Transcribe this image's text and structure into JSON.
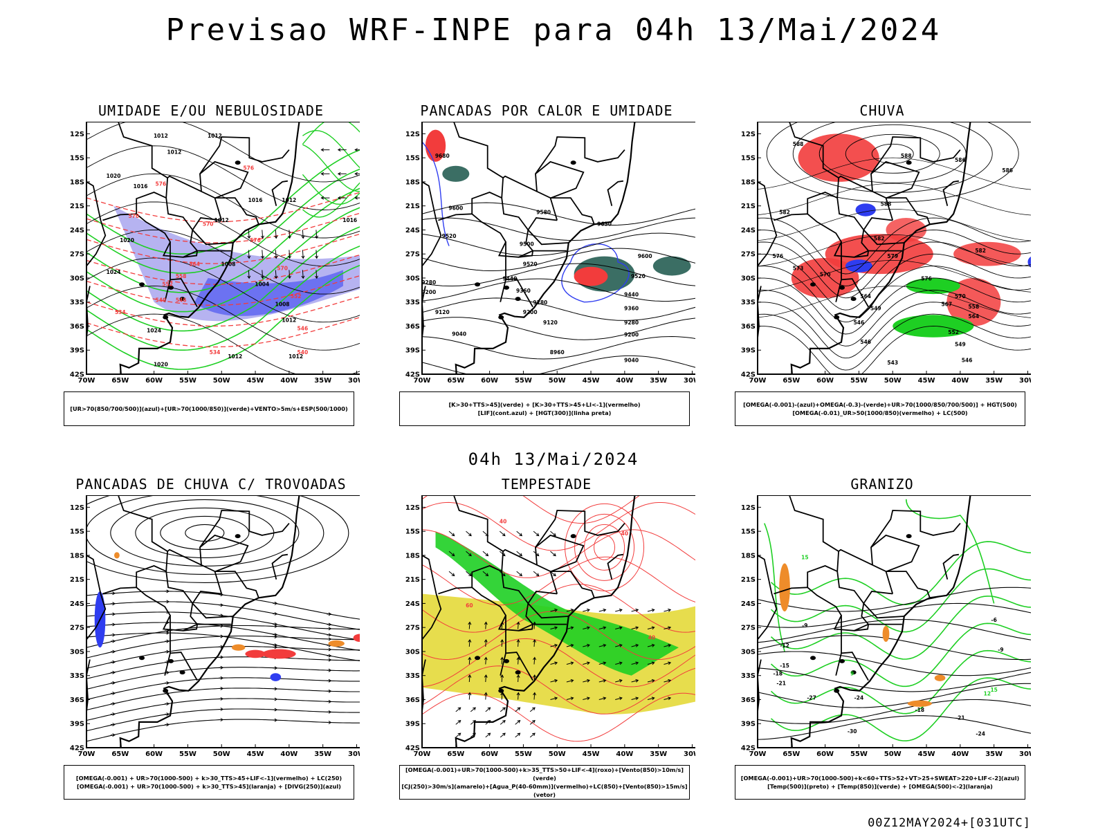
{
  "title": "Previsao WRF-INPE  para 04h 13/Mai/2024",
  "subtitle": "04h 13/Mai/2024",
  "footer": "00Z12MAY2024+[031UTC]",
  "colors": {
    "blue": "#2f3df0",
    "lavender": "#a9a6ee",
    "green": "#1ecf23",
    "red": "#f23c3c",
    "teal": "#3b6e64",
    "orange": "#ee8c2a",
    "yellow": "#e4d93a",
    "black": "#000000"
  },
  "axes": {
    "lat_ticks": [
      "12S",
      "15S",
      "18S",
      "21S",
      "24S",
      "27S",
      "30S",
      "33S",
      "36S",
      "39S",
      "42S"
    ],
    "lon_ticks": [
      "70W",
      "65W",
      "60W",
      "55W",
      "50W",
      "45W",
      "40W",
      "35W",
      "30W"
    ]
  },
  "chart_data": [
    {
      "type": "map",
      "title": "UMIDADE E/OU NEBULOSIDADE",
      "legend_lines": [
        "[UR>70(850/700/500)](azul)+[UR>70(1000/850)](verde)+VENTO>5m/s+ESP(500/1000)"
      ],
      "xlim": [
        -70,
        -28
      ],
      "ylim": [
        -42,
        -10.5
      ],
      "contour_labels": [
        {
          "text": "1012",
          "lon": -59,
          "lat": -12.5,
          "color": "black"
        },
        {
          "text": "1012",
          "lon": -51,
          "lat": -12.5,
          "color": "black"
        },
        {
          "text": "1012",
          "lon": -57,
          "lat": -14.5,
          "color": "black"
        },
        {
          "text": "1020",
          "lon": -66,
          "lat": -17.5,
          "color": "black"
        },
        {
          "text": "1016",
          "lon": -62,
          "lat": -18.8,
          "color": "black"
        },
        {
          "text": "1016",
          "lon": -45,
          "lat": -20.5,
          "color": "black"
        },
        {
          "text": "1012",
          "lon": -50,
          "lat": -23,
          "color": "black"
        },
        {
          "text": "1012",
          "lon": -40,
          "lat": -20.5,
          "color": "black"
        },
        {
          "text": "1016",
          "lon": -31,
          "lat": -23,
          "color": "black"
        },
        {
          "text": "1020",
          "lon": -64,
          "lat": -25.5,
          "color": "black"
        },
        {
          "text": "1024",
          "lon": -66,
          "lat": -29.5,
          "color": "black"
        },
        {
          "text": "1008",
          "lon": -49,
          "lat": -28.5,
          "color": "black"
        },
        {
          "text": "1004",
          "lon": -44,
          "lat": -31,
          "color": "black"
        },
        {
          "text": "1008",
          "lon": -41,
          "lat": -33.5,
          "color": "black"
        },
        {
          "text": "1012",
          "lon": -40,
          "lat": -35.5,
          "color": "black"
        },
        {
          "text": "1024",
          "lon": -60,
          "lat": -36.8,
          "color": "black"
        },
        {
          "text": "1012",
          "lon": -48,
          "lat": -40,
          "color": "black"
        },
        {
          "text": "1012",
          "lon": -39,
          "lat": -40,
          "color": "black"
        },
        {
          "text": "1020",
          "lon": -59,
          "lat": -41,
          "color": "black"
        },
        {
          "text": "576",
          "lon": -59,
          "lat": -18.5,
          "color": "red"
        },
        {
          "text": "576",
          "lon": -46,
          "lat": -16.5,
          "color": "red"
        },
        {
          "text": "570",
          "lon": -63,
          "lat": -22.5,
          "color": "red"
        },
        {
          "text": "570",
          "lon": -52,
          "lat": -23.5,
          "color": "red"
        },
        {
          "text": "576",
          "lon": -45,
          "lat": -25.5,
          "color": "red"
        },
        {
          "text": "570",
          "lon": -41,
          "lat": -29,
          "color": "red"
        },
        {
          "text": "564",
          "lon": -54,
          "lat": -28.5,
          "color": "red"
        },
        {
          "text": "558",
          "lon": -56,
          "lat": -30,
          "color": "red"
        },
        {
          "text": "552",
          "lon": -58,
          "lat": -31,
          "color": "red"
        },
        {
          "text": "546",
          "lon": -56,
          "lat": -33,
          "color": "red"
        },
        {
          "text": "540",
          "lon": -59,
          "lat": -33,
          "color": "red"
        },
        {
          "text": "534",
          "lon": -65,
          "lat": -34.5,
          "color": "red"
        },
        {
          "text": "552",
          "lon": -39,
          "lat": -32.5,
          "color": "red"
        },
        {
          "text": "546",
          "lon": -38,
          "lat": -36.5,
          "color": "red"
        },
        {
          "text": "540",
          "lon": -38,
          "lat": -39.5,
          "color": "red"
        },
        {
          "text": "534",
          "lon": -51,
          "lat": -39.5,
          "color": "red"
        }
      ]
    },
    {
      "type": "map",
      "title": "PANCADAS POR CALOR E UMIDADE",
      "legend_lines": [
        "[K>30+TTS>45](verde) + [K>30+TTS>45+LI<-1](vermelho)",
        "[LIF](cont.azul) + [HGT(300)](linha preta)"
      ],
      "xlim": [
        -70,
        -28
      ],
      "ylim": [
        -42,
        -10.5
      ],
      "contour_labels": [
        {
          "text": "9680",
          "lon": -67,
          "lat": -15,
          "color": "black"
        },
        {
          "text": "9600",
          "lon": -65,
          "lat": -21.5,
          "color": "black"
        },
        {
          "text": "9580",
          "lon": -52,
          "lat": -22,
          "color": "black"
        },
        {
          "text": "9650",
          "lon": -43,
          "lat": -23.5,
          "color": "black"
        },
        {
          "text": "9520",
          "lon": -66,
          "lat": -25,
          "color": "black"
        },
        {
          "text": "9500",
          "lon": -54.5,
          "lat": -26,
          "color": "black"
        },
        {
          "text": "9520",
          "lon": -54,
          "lat": -28.5,
          "color": "black"
        },
        {
          "text": "9600",
          "lon": -37,
          "lat": -27.5,
          "color": "black"
        },
        {
          "text": "9440",
          "lon": -57,
          "lat": -30.3,
          "color": "black"
        },
        {
          "text": "9360",
          "lon": -55,
          "lat": -31.8,
          "color": "black"
        },
        {
          "text": "9520",
          "lon": -38,
          "lat": -30,
          "color": "black"
        },
        {
          "text": "9280",
          "lon": -69,
          "lat": -30.8,
          "color": "black"
        },
        {
          "text": "9200",
          "lon": -69,
          "lat": -32,
          "color": "black"
        },
        {
          "text": "9280",
          "lon": -52.5,
          "lat": -33.3,
          "color": "black"
        },
        {
          "text": "9440",
          "lon": -39,
          "lat": -32.3,
          "color": "black"
        },
        {
          "text": "9200",
          "lon": -54,
          "lat": -34.5,
          "color": "black"
        },
        {
          "text": "9360",
          "lon": -39,
          "lat": -34,
          "color": "black"
        },
        {
          "text": "9120",
          "lon": -67,
          "lat": -34.5,
          "color": "black"
        },
        {
          "text": "9120",
          "lon": -51,
          "lat": -35.8,
          "color": "black"
        },
        {
          "text": "9280",
          "lon": -39,
          "lat": -35.8,
          "color": "black"
        },
        {
          "text": "9040",
          "lon": -64.5,
          "lat": -37.2,
          "color": "black"
        },
        {
          "text": "9200",
          "lon": -39,
          "lat": -37.3,
          "color": "black"
        },
        {
          "text": "8960",
          "lon": -50,
          "lat": -39.5,
          "color": "black"
        },
        {
          "text": "9040",
          "lon": -39,
          "lat": -40.5,
          "color": "black"
        }
      ]
    },
    {
      "type": "map",
      "title": "CHUVA",
      "legend_lines": [
        "[OMEGA(-0.001)-(azul)+OMEGA(-0.3)-(verde)+UR>70(1000/850/700/500)] + HGT(500)",
        "[OMEGA(-0.01)_UR>50(1000/850)(vermelho) + LC(500)"
      ],
      "xlim": [
        -70,
        -28
      ],
      "ylim": [
        -42,
        -10.5
      ],
      "contour_labels": [
        {
          "text": "588",
          "lon": -64,
          "lat": -13.5,
          "color": "black"
        },
        {
          "text": "588",
          "lon": -48,
          "lat": -15,
          "color": "black"
        },
        {
          "text": "586",
          "lon": -40,
          "lat": -15.5,
          "color": "black"
        },
        {
          "text": "586",
          "lon": -33,
          "lat": -16.8,
          "color": "black"
        },
        {
          "text": "588",
          "lon": -51,
          "lat": -21,
          "color": "black"
        },
        {
          "text": "582",
          "lon": -66,
          "lat": -22,
          "color": "black"
        },
        {
          "text": "582",
          "lon": -52,
          "lat": -25.3,
          "color": "black"
        },
        {
          "text": "576",
          "lon": -67,
          "lat": -27.5,
          "color": "black"
        },
        {
          "text": "579",
          "lon": -50,
          "lat": -27.5,
          "color": "black"
        },
        {
          "text": "582",
          "lon": -37,
          "lat": -26.8,
          "color": "black"
        },
        {
          "text": "573",
          "lon": -64,
          "lat": -29,
          "color": "black"
        },
        {
          "text": "570",
          "lon": -60,
          "lat": -29.8,
          "color": "black"
        },
        {
          "text": "576",
          "lon": -45,
          "lat": -30.3,
          "color": "black"
        },
        {
          "text": "564",
          "lon": -54,
          "lat": -32.5,
          "color": "black"
        },
        {
          "text": "570",
          "lon": -40,
          "lat": -32.5,
          "color": "black"
        },
        {
          "text": "567",
          "lon": -42,
          "lat": -33.5,
          "color": "black"
        },
        {
          "text": "558",
          "lon": -38,
          "lat": -33.8,
          "color": "black"
        },
        {
          "text": "564",
          "lon": -38,
          "lat": -35,
          "color": "black"
        },
        {
          "text": "546",
          "lon": -55,
          "lat": -35.8,
          "color": "black"
        },
        {
          "text": "549",
          "lon": -52.5,
          "lat": -34,
          "color": "black"
        },
        {
          "text": "552",
          "lon": -41,
          "lat": -37,
          "color": "black"
        },
        {
          "text": "549",
          "lon": -40,
          "lat": -38.5,
          "color": "black"
        },
        {
          "text": "546",
          "lon": -54,
          "lat": -38.2,
          "color": "black"
        },
        {
          "text": "543",
          "lon": -50,
          "lat": -40.8,
          "color": "black"
        },
        {
          "text": "546",
          "lon": -39,
          "lat": -40.5,
          "color": "black"
        }
      ]
    },
    {
      "type": "map",
      "title": "PANCADAS DE CHUVA C/ TROVOADAS",
      "legend_lines": [
        "[OMEGA(-0.001) + UR>70(1000-500) + k>30_TTS>45+LIF<-1](vermelho) + LC(250)",
        "[OMEGA(-0.001) + UR>70(1000-500) + k>30_TTS>45](laranja) + [DIVG(250)](azul)"
      ],
      "xlim": [
        -70,
        -28
      ],
      "ylim": [
        -42,
        -10.5
      ],
      "contour_labels": []
    },
    {
      "type": "map",
      "title": "TEMPESTADE",
      "legend_lines": [
        "[OMEGA(-0.001)+UR>70(1000-500)+k>35_TTS>50+LIF<-4](roxo)+[Vento(850)>10m/s](verde)",
        "[CJ(250)>30m/s](amarelo)+[Agua_P(40-60mm)](vermelho)+LC(850)+[Vento(850)>15m/s](vetor)"
      ],
      "xlim": [
        -70,
        -28
      ],
      "ylim": [
        -42,
        -10.5
      ],
      "contour_labels": [
        {
          "text": "40",
          "lon": -58,
          "lat": -14,
          "color": "red"
        },
        {
          "text": "40",
          "lon": -40,
          "lat": -15.5,
          "color": "red"
        },
        {
          "text": "40",
          "lon": -36,
          "lat": -28.5,
          "color": "red"
        },
        {
          "text": "60",
          "lon": -63,
          "lat": -24.5,
          "color": "red"
        }
      ]
    },
    {
      "type": "map",
      "title": "GRANIZO",
      "legend_lines": [
        "[OMEGA(-0.001)+UR>70(1000-500)+k<60+TTS>52+VT>25+SWEAT>220+LIF<-2](azul)",
        "[Temp(500)](preto) + [Temp(850)](verde) + [OMEGA(500)<-2](laranja)"
      ],
      "xlim": [
        -70,
        -28
      ],
      "ylim": [
        -42,
        -10.5
      ],
      "contour_labels": [
        {
          "text": "-6",
          "lon": -35,
          "lat": -26.3,
          "color": "black"
        },
        {
          "text": "-9",
          "lon": -63,
          "lat": -27,
          "color": "black"
        },
        {
          "text": "-9",
          "lon": -34,
          "lat": -30,
          "color": "black"
        },
        {
          "text": "-12",
          "lon": -66,
          "lat": -29.5,
          "color": "black"
        },
        {
          "text": "-15",
          "lon": -66,
          "lat": -32,
          "color": "black"
        },
        {
          "text": "-18",
          "lon": -67,
          "lat": -33,
          "color": "black"
        },
        {
          "text": "-21",
          "lon": -66.5,
          "lat": -34.2,
          "color": "black"
        },
        {
          "text": "-24",
          "lon": -55,
          "lat": -36,
          "color": "black"
        },
        {
          "text": "-27",
          "lon": -62,
          "lat": -36,
          "color": "black"
        },
        {
          "text": "-18",
          "lon": -46,
          "lat": -37.5,
          "color": "black"
        },
        {
          "text": "-21",
          "lon": -40,
          "lat": -38.5,
          "color": "black"
        },
        {
          "text": "-24",
          "lon": -37,
          "lat": -40.5,
          "color": "black"
        },
        {
          "text": "-30",
          "lon": -56,
          "lat": -40.2,
          "color": "black"
        },
        {
          "text": "15",
          "lon": -63,
          "lat": -18.5,
          "color": "green"
        },
        {
          "text": "12",
          "lon": -36,
          "lat": -35.5,
          "color": "green"
        },
        {
          "text": "15",
          "lon": -35,
          "lat": -35,
          "color": "green"
        },
        {
          "text": "9",
          "lon": -56,
          "lat": -33,
          "color": "green"
        }
      ]
    }
  ]
}
